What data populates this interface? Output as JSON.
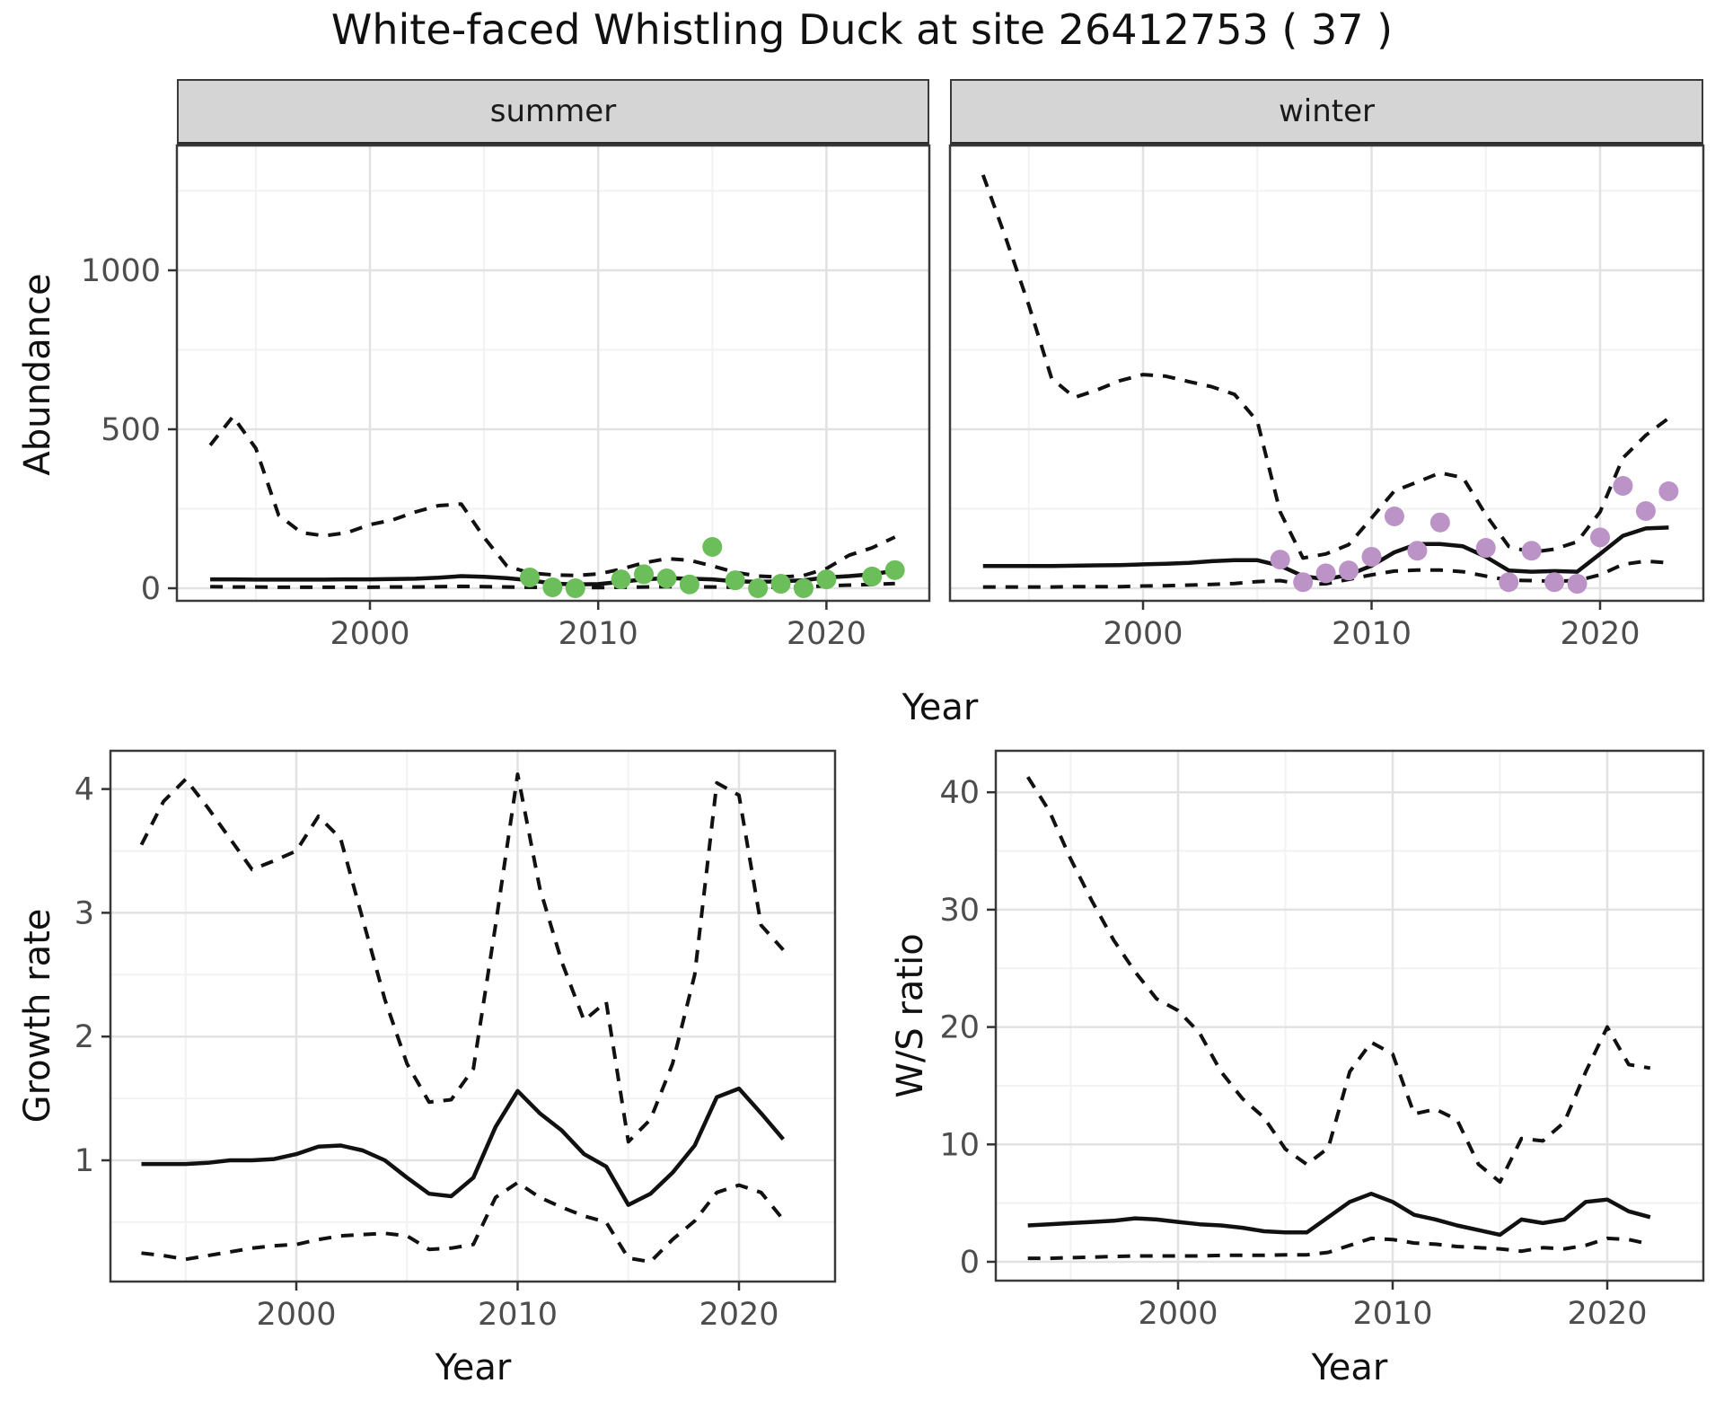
{
  "title": "White-faced Whistling Duck at site 26412753 ( 37 )",
  "labels": {
    "facet_summer": "summer",
    "facet_winter": "winter",
    "abundance": "Abundance",
    "growth_rate": "Growth rate",
    "ws_ratio": "W/S ratio",
    "year": "Year"
  },
  "colors": {
    "summer_points": "#6cbe5a",
    "winter_points": "#bb93c6",
    "line": "#111111",
    "grid_major": "#e2e2e2",
    "grid_minor": "#f2f2f2",
    "panel_border": "#3a3a3a",
    "tick_text": "#4d4d4d",
    "strip_bg": "#d5d5d5"
  },
  "chart_data": [
    {
      "id": "abundance-summer",
      "type": "line",
      "facet": "summer",
      "ylabel": "Abundance",
      "xlabel": "Year",
      "xlim": [
        1991.6,
        2024.4
      ],
      "ylim": [
        -70,
        1390
      ],
      "xticks": [
        2000,
        2010,
        2020
      ],
      "xminor": [
        1995,
        2005,
        2015
      ],
      "yticks": [
        0,
        500,
        1000
      ],
      "yminor": [
        250,
        750,
        1250
      ],
      "x": [
        1993,
        1994,
        1995,
        1996,
        1997,
        1998,
        1999,
        2000,
        2001,
        2002,
        2003,
        2004,
        2005,
        2006,
        2007,
        2008,
        2009,
        2010,
        2011,
        2012,
        2013,
        2014,
        2015,
        2016,
        2017,
        2018,
        2019,
        2020,
        2021,
        2022,
        2023
      ],
      "series": [
        {
          "name": "median",
          "style": "solid",
          "values": [
            28,
            28,
            27,
            27,
            27,
            27,
            28,
            28,
            29,
            30,
            33,
            38,
            36,
            32,
            25,
            15,
            12,
            13,
            20,
            28,
            32,
            30,
            28,
            22,
            20,
            22,
            25,
            34,
            38,
            44,
            55
          ]
        },
        {
          "name": "lower95",
          "style": "dashed",
          "values": [
            5,
            4,
            4,
            3,
            3,
            3,
            3,
            3,
            4,
            4,
            5,
            6,
            5,
            4,
            3,
            2,
            2,
            2,
            3,
            4,
            5,
            5,
            4,
            3,
            3,
            3,
            4,
            8,
            10,
            12,
            15
          ]
        },
        {
          "name": "upper95",
          "style": "dashed",
          "values": [
            450,
            540,
            440,
            230,
            175,
            165,
            175,
            200,
            215,
            240,
            260,
            265,
            160,
            70,
            48,
            42,
            40,
            45,
            60,
            80,
            93,
            88,
            70,
            50,
            38,
            35,
            40,
            62,
            104,
            127,
            161
          ]
        }
      ],
      "points": {
        "x": [
          2007,
          2008,
          2009,
          2011,
          2012,
          2013,
          2014,
          2015,
          2016,
          2017,
          2018,
          2019,
          2020,
          2022,
          2023
        ],
        "y": [
          34,
          3,
          0,
          28,
          44,
          31,
          12,
          130,
          25,
          0,
          14,
          0,
          28,
          37,
          57
        ]
      }
    },
    {
      "id": "abundance-winter",
      "type": "line",
      "facet": "winter",
      "ylabel": "Abundance",
      "xlabel": "Year",
      "xlim": [
        1991.6,
        2024.4
      ],
      "ylim": [
        -70,
        1390
      ],
      "xticks": [
        2000,
        2010,
        2020
      ],
      "xminor": [
        1995,
        2005,
        2015
      ],
      "yticks": [
        0,
        500,
        1000
      ],
      "yminor": [
        250,
        750,
        1250
      ],
      "x": [
        1993,
        1994,
        1995,
        1996,
        1997,
        1998,
        1999,
        2000,
        2001,
        2002,
        2003,
        2004,
        2005,
        2006,
        2007,
        2008,
        2009,
        2010,
        2011,
        2012,
        2013,
        2014,
        2015,
        2016,
        2017,
        2018,
        2019,
        2020,
        2021,
        2022,
        2023
      ],
      "series": [
        {
          "name": "median",
          "style": "solid",
          "values": [
            70,
            70,
            70,
            70,
            71,
            72,
            73,
            75,
            77,
            80,
            85,
            88,
            88,
            71,
            38,
            28,
            42,
            71,
            113,
            139,
            139,
            132,
            99,
            56,
            52,
            54,
            52,
            108,
            165,
            188,
            191
          ]
        },
        {
          "name": "lower95",
          "style": "dashed",
          "values": [
            4,
            4,
            4,
            4,
            5,
            5,
            5,
            7,
            8,
            10,
            12,
            15,
            21,
            24,
            12,
            14,
            28,
            42,
            54,
            57,
            57,
            52,
            38,
            25,
            24,
            22,
            24,
            42,
            75,
            85,
            80
          ]
        },
        {
          "name": "upper95",
          "style": "dashed",
          "values": [
            1300,
            1100,
            890,
            660,
            600,
            624,
            653,
            672,
            667,
            650,
            634,
            610,
            525,
            240,
            95,
            108,
            137,
            221,
            306,
            334,
            363,
            348,
            231,
            132,
            113,
            123,
            146,
            240,
            410,
            481,
            535
          ]
        }
      ],
      "points": {
        "x": [
          2006,
          2007,
          2008,
          2009,
          2010,
          2011,
          2012,
          2013,
          2015,
          2016,
          2017,
          2018,
          2019,
          2020,
          2021,
          2022,
          2023
        ],
        "y": [
          90,
          19,
          47,
          56,
          99,
          226,
          118,
          207,
          127,
          19,
          118,
          19,
          14,
          160,
          322,
          243,
          305
        ]
      }
    },
    {
      "id": "growth-rate",
      "type": "line",
      "ylabel": "Growth rate",
      "xlabel": "Year",
      "xlim": [
        1991.6,
        2024.3
      ],
      "ylim": [
        0.02,
        4.31
      ],
      "xticks": [
        2000,
        2010,
        2020
      ],
      "xminor": [
        1995,
        2005,
        2015
      ],
      "yticks": [
        1,
        2,
        3,
        4
      ],
      "yminor": [
        0.5,
        1.5,
        2.5,
        3.5
      ],
      "x": [
        1993,
        1994,
        1995,
        1996,
        1997,
        1998,
        1999,
        2000,
        2001,
        2002,
        2003,
        2004,
        2005,
        2006,
        2007,
        2008,
        2009,
        2010,
        2011,
        2012,
        2013,
        2014,
        2015,
        2016,
        2017,
        2018,
        2019,
        2020,
        2021,
        2022
      ],
      "series": [
        {
          "name": "median",
          "style": "solid",
          "values": [
            0.97,
            0.97,
            0.97,
            0.98,
            1.0,
            1.0,
            1.01,
            1.05,
            1.11,
            1.12,
            1.08,
            1.0,
            0.86,
            0.73,
            0.71,
            0.86,
            1.27,
            1.56,
            1.38,
            1.24,
            1.05,
            0.95,
            0.64,
            0.73,
            0.9,
            1.12,
            1.51,
            1.58,
            1.38,
            1.17
          ]
        },
        {
          "name": "lower95",
          "style": "dashed",
          "values": [
            0.25,
            0.23,
            0.2,
            0.23,
            0.26,
            0.29,
            0.31,
            0.32,
            0.36,
            0.39,
            0.4,
            0.41,
            0.39,
            0.28,
            0.29,
            0.32,
            0.7,
            0.82,
            0.7,
            0.62,
            0.55,
            0.5,
            0.21,
            0.18,
            0.36,
            0.51,
            0.74,
            0.8,
            0.74,
            0.52
          ]
        },
        {
          "name": "upper95",
          "style": "dashed",
          "values": [
            3.55,
            3.9,
            4.08,
            3.85,
            3.6,
            3.35,
            3.42,
            3.5,
            3.78,
            3.6,
            2.95,
            2.3,
            1.78,
            1.47,
            1.49,
            1.74,
            2.9,
            4.12,
            3.2,
            2.6,
            2.13,
            2.28,
            1.15,
            1.33,
            1.78,
            2.5,
            4.05,
            3.95,
            2.9,
            2.7
          ]
        }
      ]
    },
    {
      "id": "ws-ratio",
      "type": "line",
      "ylabel": "W/S ratio",
      "xlabel": "Year",
      "xlim": [
        1991.6,
        2024.4
      ],
      "ylim": [
        -1.6,
        43.5
      ],
      "xticks": [
        2000,
        2010,
        2020
      ],
      "xminor": [
        1995,
        2005,
        2015
      ],
      "yticks": [
        0,
        10,
        20,
        30,
        40
      ],
      "yminor": [
        5,
        15,
        25,
        35
      ],
      "x": [
        1993,
        1994,
        1995,
        1996,
        1997,
        1998,
        1999,
        2000,
        2001,
        2002,
        2003,
        2004,
        2005,
        2006,
        2007,
        2008,
        2009,
        2010,
        2011,
        2012,
        2013,
        2014,
        2015,
        2016,
        2017,
        2018,
        2019,
        2020,
        2021,
        2022
      ],
      "series": [
        {
          "name": "median",
          "style": "solid",
          "values": [
            3.1,
            3.2,
            3.3,
            3.4,
            3.5,
            3.7,
            3.6,
            3.4,
            3.2,
            3.1,
            2.9,
            2.6,
            2.5,
            2.5,
            3.8,
            5.1,
            5.8,
            5.1,
            4.0,
            3.6,
            3.1,
            2.7,
            2.3,
            3.6,
            3.3,
            3.6,
            5.1,
            5.3,
            4.3,
            3.8
          ]
        },
        {
          "name": "lower95",
          "style": "dashed",
          "values": [
            0.3,
            0.3,
            0.35,
            0.4,
            0.45,
            0.5,
            0.5,
            0.5,
            0.5,
            0.55,
            0.55,
            0.55,
            0.6,
            0.6,
            0.8,
            1.4,
            2.0,
            1.9,
            1.6,
            1.5,
            1.3,
            1.2,
            1.1,
            0.9,
            1.2,
            1.1,
            1.4,
            2.0,
            1.9,
            1.5
          ]
        },
        {
          "name": "upper95",
          "style": "dashed",
          "values": [
            41.3,
            38.4,
            34.3,
            30.7,
            27.4,
            24.7,
            22.4,
            21.4,
            19.5,
            16.2,
            13.9,
            12.3,
            9.6,
            8.3,
            9.7,
            16.2,
            18.7,
            17.7,
            12.6,
            13.0,
            12.1,
            8.3,
            6.8,
            10.5,
            10.3,
            11.9,
            16.2,
            20.0,
            16.8,
            16.5
          ]
        }
      ]
    }
  ]
}
